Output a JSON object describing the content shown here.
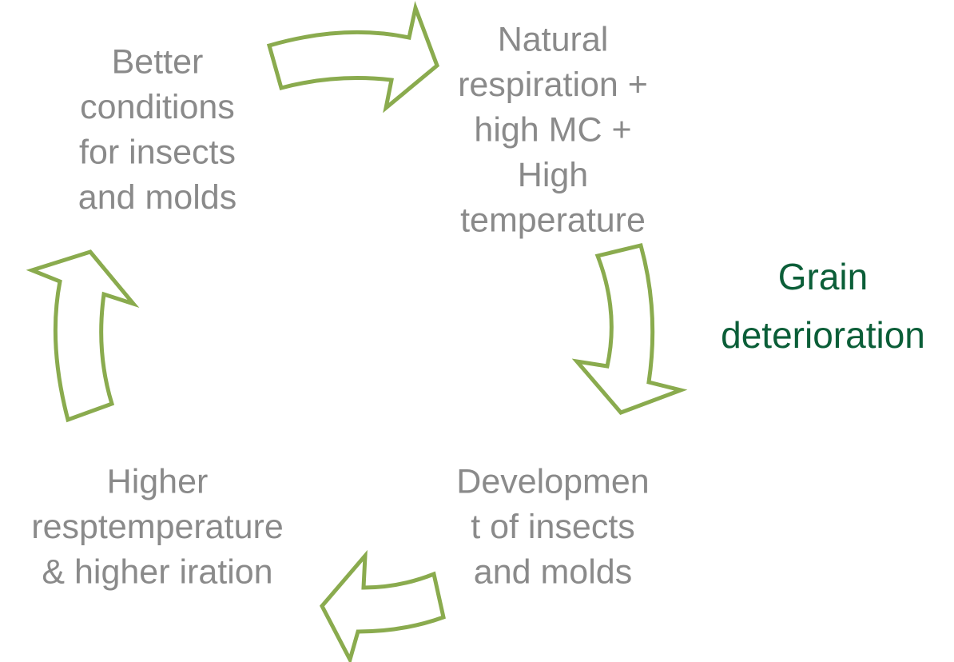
{
  "title": [
    "Grain",
    "deterioration"
  ],
  "nodes": [
    {
      "label": [
        "Better",
        "conditions",
        "for insects",
        "and molds"
      ]
    },
    {
      "label": [
        "Natural",
        "respiration +",
        "high MC +",
        "High",
        "temperature"
      ]
    },
    {
      "label": [
        "Developmen",
        "t of insects",
        "and molds"
      ]
    },
    {
      "label": [
        "Higher",
        "resptemperature",
        "& higher iration"
      ]
    }
  ]
}
